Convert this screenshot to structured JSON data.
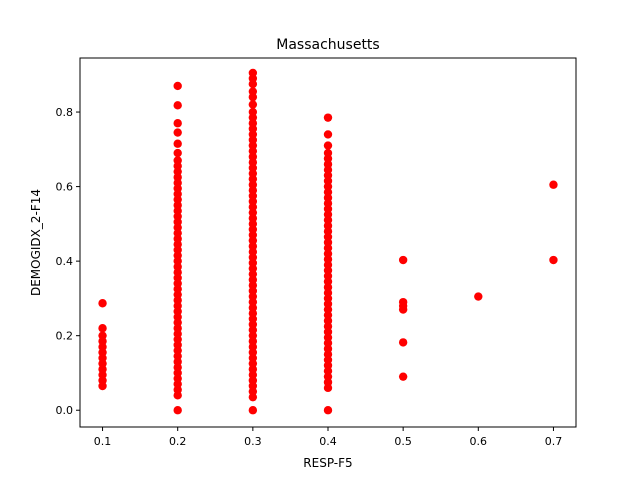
{
  "chart_data": {
    "type": "scatter",
    "title": "Massachusetts",
    "xlabel": "RESP-F5",
    "ylabel": "DEMOGIDX_2-F14",
    "xlim": [
      0.07,
      0.73
    ],
    "ylim": [
      -0.045,
      0.945
    ],
    "xticks": [
      0.1,
      0.2,
      0.3,
      0.4,
      0.5,
      0.6,
      0.7
    ],
    "xtick_labels": [
      "0.1",
      "0.2",
      "0.3",
      "0.4",
      "0.5",
      "0.6",
      "0.7"
    ],
    "yticks": [
      0.0,
      0.2,
      0.4,
      0.6,
      0.8
    ],
    "ytick_labels": [
      "0.0",
      "0.2",
      "0.4",
      "0.6",
      "0.8"
    ],
    "grid": false,
    "legend": "none",
    "marker_color": "#ff0000",
    "series": [
      {
        "points": [
          [
            0.1,
            0.065
          ],
          [
            0.1,
            0.08
          ],
          [
            0.1,
            0.095
          ],
          [
            0.1,
            0.11
          ],
          [
            0.1,
            0.125
          ],
          [
            0.1,
            0.14
          ],
          [
            0.1,
            0.155
          ],
          [
            0.1,
            0.17
          ],
          [
            0.1,
            0.185
          ],
          [
            0.1,
            0.2
          ],
          [
            0.1,
            0.22
          ],
          [
            0.1,
            0.287
          ],
          [
            0.2,
            0.0
          ],
          [
            0.2,
            0.04
          ],
          [
            0.2,
            0.055
          ],
          [
            0.2,
            0.07
          ],
          [
            0.2,
            0.085
          ],
          [
            0.2,
            0.1
          ],
          [
            0.2,
            0.115
          ],
          [
            0.2,
            0.13
          ],
          [
            0.2,
            0.145
          ],
          [
            0.2,
            0.16
          ],
          [
            0.2,
            0.175
          ],
          [
            0.2,
            0.19
          ],
          [
            0.2,
            0.205
          ],
          [
            0.2,
            0.22
          ],
          [
            0.2,
            0.235
          ],
          [
            0.2,
            0.25
          ],
          [
            0.2,
            0.265
          ],
          [
            0.2,
            0.28
          ],
          [
            0.2,
            0.295
          ],
          [
            0.2,
            0.31
          ],
          [
            0.2,
            0.325
          ],
          [
            0.2,
            0.34
          ],
          [
            0.2,
            0.355
          ],
          [
            0.2,
            0.37
          ],
          [
            0.2,
            0.385
          ],
          [
            0.2,
            0.4
          ],
          [
            0.2,
            0.415
          ],
          [
            0.2,
            0.43
          ],
          [
            0.2,
            0.445
          ],
          [
            0.2,
            0.46
          ],
          [
            0.2,
            0.475
          ],
          [
            0.2,
            0.49
          ],
          [
            0.2,
            0.505
          ],
          [
            0.2,
            0.52
          ],
          [
            0.2,
            0.535
          ],
          [
            0.2,
            0.55
          ],
          [
            0.2,
            0.565
          ],
          [
            0.2,
            0.58
          ],
          [
            0.2,
            0.595
          ],
          [
            0.2,
            0.61
          ],
          [
            0.2,
            0.625
          ],
          [
            0.2,
            0.64
          ],
          [
            0.2,
            0.655
          ],
          [
            0.2,
            0.67
          ],
          [
            0.2,
            0.69
          ],
          [
            0.2,
            0.715
          ],
          [
            0.2,
            0.745
          ],
          [
            0.2,
            0.77
          ],
          [
            0.2,
            0.818
          ],
          [
            0.2,
            0.87
          ],
          [
            0.3,
            0.0
          ],
          [
            0.3,
            0.035
          ],
          [
            0.3,
            0.05
          ],
          [
            0.3,
            0.065
          ],
          [
            0.3,
            0.08
          ],
          [
            0.3,
            0.095
          ],
          [
            0.3,
            0.11
          ],
          [
            0.3,
            0.125
          ],
          [
            0.3,
            0.14
          ],
          [
            0.3,
            0.155
          ],
          [
            0.3,
            0.17
          ],
          [
            0.3,
            0.185
          ],
          [
            0.3,
            0.2
          ],
          [
            0.3,
            0.215
          ],
          [
            0.3,
            0.23
          ],
          [
            0.3,
            0.245
          ],
          [
            0.3,
            0.26
          ],
          [
            0.3,
            0.275
          ],
          [
            0.3,
            0.29
          ],
          [
            0.3,
            0.305
          ],
          [
            0.3,
            0.32
          ],
          [
            0.3,
            0.335
          ],
          [
            0.3,
            0.35
          ],
          [
            0.3,
            0.365
          ],
          [
            0.3,
            0.38
          ],
          [
            0.3,
            0.395
          ],
          [
            0.3,
            0.41
          ],
          [
            0.3,
            0.425
          ],
          [
            0.3,
            0.44
          ],
          [
            0.3,
            0.455
          ],
          [
            0.3,
            0.47
          ],
          [
            0.3,
            0.485
          ],
          [
            0.3,
            0.5
          ],
          [
            0.3,
            0.515
          ],
          [
            0.3,
            0.53
          ],
          [
            0.3,
            0.545
          ],
          [
            0.3,
            0.56
          ],
          [
            0.3,
            0.575
          ],
          [
            0.3,
            0.59
          ],
          [
            0.3,
            0.605
          ],
          [
            0.3,
            0.62
          ],
          [
            0.3,
            0.635
          ],
          [
            0.3,
            0.65
          ],
          [
            0.3,
            0.665
          ],
          [
            0.3,
            0.68
          ],
          [
            0.3,
            0.695
          ],
          [
            0.3,
            0.71
          ],
          [
            0.3,
            0.725
          ],
          [
            0.3,
            0.74
          ],
          [
            0.3,
            0.755
          ],
          [
            0.3,
            0.77
          ],
          [
            0.3,
            0.785
          ],
          [
            0.3,
            0.8
          ],
          [
            0.3,
            0.82
          ],
          [
            0.3,
            0.84
          ],
          [
            0.3,
            0.855
          ],
          [
            0.3,
            0.875
          ],
          [
            0.3,
            0.89
          ],
          [
            0.3,
            0.905
          ],
          [
            0.4,
            0.0
          ],
          [
            0.4,
            0.06
          ],
          [
            0.4,
            0.075
          ],
          [
            0.4,
            0.09
          ],
          [
            0.4,
            0.105
          ],
          [
            0.4,
            0.12
          ],
          [
            0.4,
            0.135
          ],
          [
            0.4,
            0.15
          ],
          [
            0.4,
            0.165
          ],
          [
            0.4,
            0.18
          ],
          [
            0.4,
            0.195
          ],
          [
            0.4,
            0.21
          ],
          [
            0.4,
            0.225
          ],
          [
            0.4,
            0.24
          ],
          [
            0.4,
            0.255
          ],
          [
            0.4,
            0.27
          ],
          [
            0.4,
            0.285
          ],
          [
            0.4,
            0.3
          ],
          [
            0.4,
            0.315
          ],
          [
            0.4,
            0.33
          ],
          [
            0.4,
            0.345
          ],
          [
            0.4,
            0.36
          ],
          [
            0.4,
            0.375
          ],
          [
            0.4,
            0.39
          ],
          [
            0.4,
            0.405
          ],
          [
            0.4,
            0.42
          ],
          [
            0.4,
            0.435
          ],
          [
            0.4,
            0.45
          ],
          [
            0.4,
            0.465
          ],
          [
            0.4,
            0.48
          ],
          [
            0.4,
            0.495
          ],
          [
            0.4,
            0.51
          ],
          [
            0.4,
            0.525
          ],
          [
            0.4,
            0.54
          ],
          [
            0.4,
            0.555
          ],
          [
            0.4,
            0.57
          ],
          [
            0.4,
            0.585
          ],
          [
            0.4,
            0.6
          ],
          [
            0.4,
            0.615
          ],
          [
            0.4,
            0.63
          ],
          [
            0.4,
            0.645
          ],
          [
            0.4,
            0.66
          ],
          [
            0.4,
            0.675
          ],
          [
            0.4,
            0.69
          ],
          [
            0.4,
            0.71
          ],
          [
            0.4,
            0.74
          ],
          [
            0.4,
            0.785
          ],
          [
            0.5,
            0.09
          ],
          [
            0.5,
            0.182
          ],
          [
            0.5,
            0.27
          ],
          [
            0.5,
            0.28
          ],
          [
            0.5,
            0.29
          ],
          [
            0.5,
            0.403
          ],
          [
            0.6,
            0.305
          ],
          [
            0.7,
            0.403
          ],
          [
            0.7,
            0.605
          ]
        ]
      }
    ]
  }
}
